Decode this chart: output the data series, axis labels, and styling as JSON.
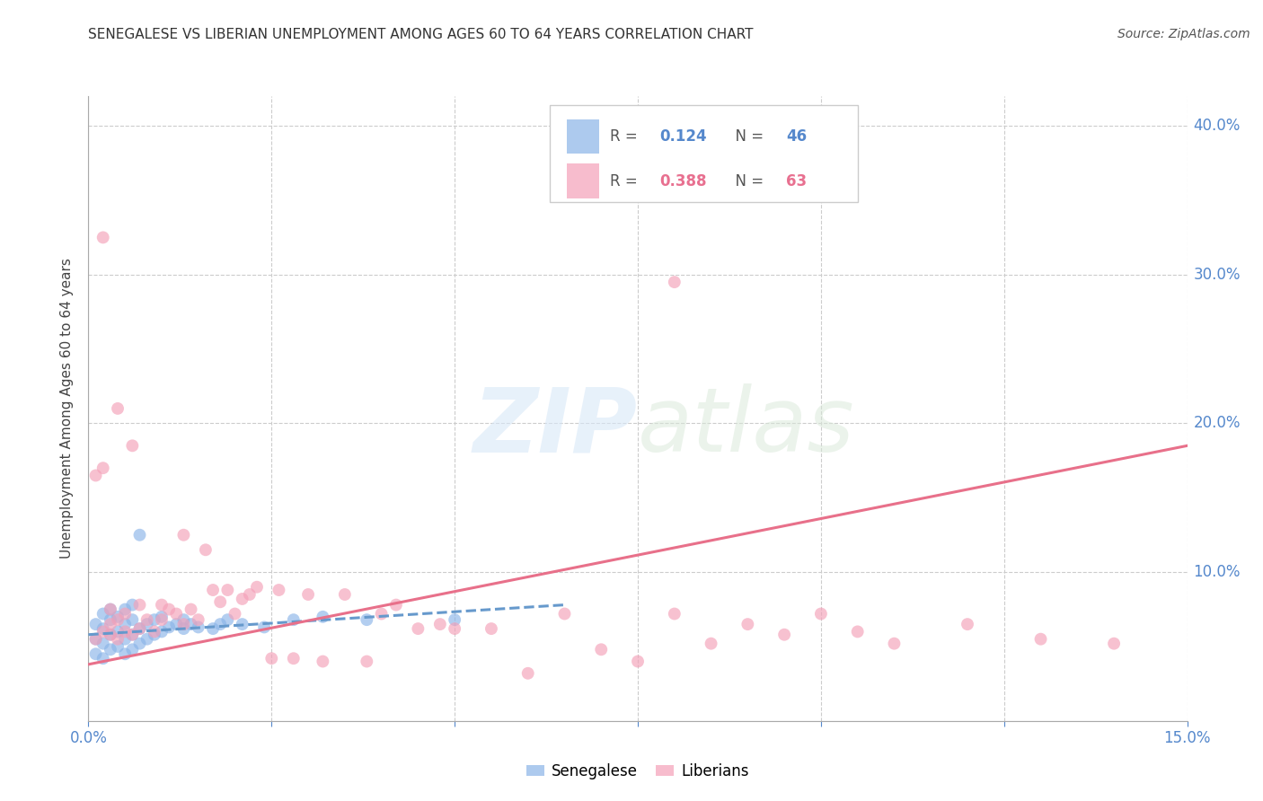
{
  "title": "SENEGALESE VS LIBERIAN UNEMPLOYMENT AMONG AGES 60 TO 64 YEARS CORRELATION CHART",
  "source": "Source: ZipAtlas.com",
  "ylabel": "Unemployment Among Ages 60 to 64 years",
  "xlim": [
    0.0,
    0.15
  ],
  "ylim": [
    0.0,
    0.42
  ],
  "background_color": "#ffffff",
  "grid_color": "#cccccc",
  "senegalese_color": "#8ab4e8",
  "liberian_color": "#f4a0b8",
  "senegalese_line_color": "#6699cc",
  "liberian_line_color": "#e8708a",
  "senegalese_R": "0.124",
  "senegalese_N": "46",
  "liberian_R": "0.388",
  "liberian_N": "63",
  "senegalese_scatter_x": [
    0.001,
    0.001,
    0.001,
    0.002,
    0.002,
    0.002,
    0.002,
    0.003,
    0.003,
    0.003,
    0.003,
    0.004,
    0.004,
    0.004,
    0.005,
    0.005,
    0.005,
    0.005,
    0.006,
    0.006,
    0.006,
    0.006,
    0.007,
    0.007,
    0.007,
    0.008,
    0.008,
    0.009,
    0.009,
    0.01,
    0.01,
    0.011,
    0.012,
    0.013,
    0.013,
    0.014,
    0.015,
    0.017,
    0.018,
    0.019,
    0.021,
    0.024,
    0.028,
    0.032,
    0.038,
    0.05
  ],
  "senegalese_scatter_y": [
    0.045,
    0.055,
    0.065,
    0.042,
    0.052,
    0.062,
    0.072,
    0.048,
    0.058,
    0.068,
    0.075,
    0.05,
    0.06,
    0.07,
    0.045,
    0.055,
    0.065,
    0.075,
    0.048,
    0.058,
    0.068,
    0.078,
    0.052,
    0.062,
    0.125,
    0.055,
    0.065,
    0.058,
    0.068,
    0.06,
    0.07,
    0.063,
    0.065,
    0.062,
    0.068,
    0.065,
    0.063,
    0.062,
    0.065,
    0.068,
    0.065,
    0.063,
    0.068,
    0.07,
    0.068,
    0.068
  ],
  "liberian_scatter_x": [
    0.001,
    0.001,
    0.002,
    0.002,
    0.003,
    0.003,
    0.003,
    0.004,
    0.004,
    0.005,
    0.005,
    0.006,
    0.006,
    0.007,
    0.007,
    0.008,
    0.009,
    0.01,
    0.01,
    0.011,
    0.012,
    0.013,
    0.013,
    0.014,
    0.015,
    0.016,
    0.017,
    0.018,
    0.019,
    0.02,
    0.021,
    0.022,
    0.023,
    0.025,
    0.026,
    0.028,
    0.03,
    0.032,
    0.035,
    0.038,
    0.04,
    0.042,
    0.045,
    0.048,
    0.05,
    0.055,
    0.06,
    0.065,
    0.07,
    0.075,
    0.08,
    0.085,
    0.09,
    0.095,
    0.1,
    0.105,
    0.11,
    0.12,
    0.13,
    0.14,
    0.002,
    0.004,
    0.08
  ],
  "liberian_scatter_y": [
    0.055,
    0.165,
    0.06,
    0.17,
    0.058,
    0.065,
    0.075,
    0.055,
    0.068,
    0.06,
    0.072,
    0.058,
    0.185,
    0.062,
    0.078,
    0.068,
    0.06,
    0.068,
    0.078,
    0.075,
    0.072,
    0.065,
    0.125,
    0.075,
    0.068,
    0.115,
    0.088,
    0.08,
    0.088,
    0.072,
    0.082,
    0.085,
    0.09,
    0.042,
    0.088,
    0.042,
    0.085,
    0.04,
    0.085,
    0.04,
    0.072,
    0.078,
    0.062,
    0.065,
    0.062,
    0.062,
    0.032,
    0.072,
    0.048,
    0.04,
    0.072,
    0.052,
    0.065,
    0.058,
    0.072,
    0.06,
    0.052,
    0.065,
    0.055,
    0.052,
    0.325,
    0.21,
    0.295
  ],
  "senegalese_line_x": [
    0.0,
    0.065
  ],
  "senegalese_line_y": [
    0.058,
    0.078
  ],
  "liberian_line_x": [
    0.0,
    0.15
  ],
  "liberian_line_y": [
    0.038,
    0.185
  ],
  "watermark_line1": "ZIP",
  "watermark_line2": "atlas",
  "marker_size": 100
}
